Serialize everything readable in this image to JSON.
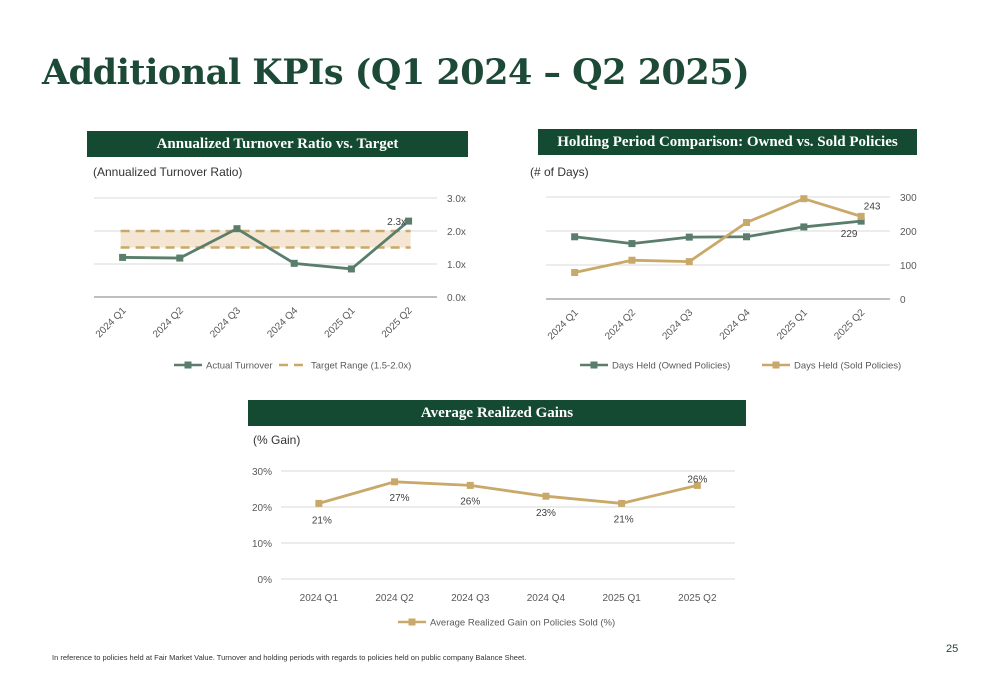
{
  "page": {
    "title": "Additional KPIs (Q1 2024 – Q2 2025)",
    "footnote": "In reference to policies held at Fair Market Value. Turnover and holding periods with regards to policies held on public company Balance Sheet.",
    "page_number": "25"
  },
  "colors": {
    "header_bg": "#144a32",
    "title": "#1c4a36",
    "green_series": "#5a7d6c",
    "gold_series": "#c9a96a",
    "target_band": "#f4e6d2",
    "gridline": "#d9d9d9"
  },
  "chart_data": [
    {
      "type": "line",
      "title": "Annualized Turnover Ratio vs. Target",
      "unit_label": "(Annualized Turnover Ratio)",
      "categories": [
        "2024 Q1",
        "2024 Q2",
        "2024 Q3",
        "2024 Q4",
        "2025 Q1",
        "2025 Q2"
      ],
      "series": [
        {
          "name": "Actual Turnover",
          "values": [
            1.2,
            1.18,
            2.07,
            1.02,
            0.85,
            2.3
          ],
          "color": "#5a7d6c",
          "marker": "square",
          "labels": [
            "",
            "",
            "",
            "",
            "",
            "2.3x"
          ]
        }
      ],
      "target_range": {
        "name": "Target Range (1.5-2.0x)",
        "low": 1.5,
        "high": 2.0,
        "color": "#c9a96a",
        "style": "dashed"
      },
      "ylim": [
        0,
        3
      ],
      "y_ticks": [
        "0.0x",
        "1.0x",
        "2.0x",
        "3.0x"
      ],
      "y_axis_side": "right",
      "legend": "bottom",
      "grid": true
    },
    {
      "type": "line",
      "title": "Holding Period Comparison: Owned vs. Sold Policies",
      "unit_label": "(# of Days)",
      "categories": [
        "2024 Q1",
        "2024 Q2",
        "2024 Q3",
        "2024 Q4",
        "2025 Q1",
        "2025 Q2"
      ],
      "series": [
        {
          "name": "Days Held (Owned Policies)",
          "values": [
            183,
            163,
            182,
            183,
            212,
            229
          ],
          "color": "#5a7d6c",
          "marker": "square",
          "labels": [
            "",
            "",
            "",
            "",
            "",
            "229"
          ]
        },
        {
          "name": "Days Held (Sold Policies)",
          "values": [
            78,
            114,
            110,
            225,
            295,
            243
          ],
          "color": "#c9a96a",
          "marker": "square",
          "labels": [
            "",
            "",
            "",
            "",
            "",
            "243"
          ]
        }
      ],
      "ylim": [
        0,
        300
      ],
      "y_ticks": [
        "0",
        "100",
        "200",
        "300"
      ],
      "y_axis_side": "right",
      "legend": "bottom",
      "grid": true
    },
    {
      "type": "line",
      "title": "Average Realized Gains",
      "unit_label": "(% Gain)",
      "categories": [
        "2024 Q1",
        "2024 Q2",
        "2024 Q3",
        "2024 Q4",
        "2025 Q1",
        "2025 Q2"
      ],
      "series": [
        {
          "name": "Average Realized Gain on Policies Sold (%)",
          "values": [
            21,
            27,
            26,
            23,
            21,
            26
          ],
          "color": "#c9a96a",
          "marker": "square",
          "labels": [
            "21%",
            "27%",
            "26%",
            "23%",
            "21%",
            "26%"
          ]
        }
      ],
      "ylim": [
        0,
        30
      ],
      "y_ticks": [
        "0%",
        "10%",
        "20%",
        "30%"
      ],
      "y_axis_side": "left",
      "legend": "bottom",
      "grid": true
    }
  ]
}
